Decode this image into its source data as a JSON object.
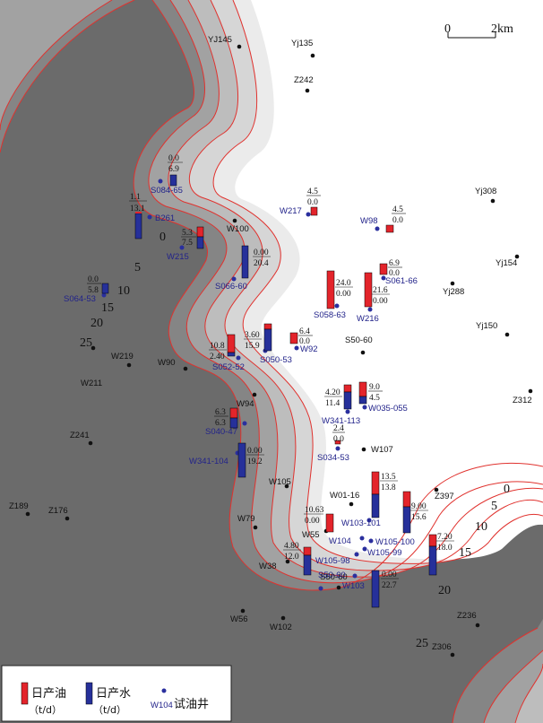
{
  "scale": {
    "zero": "0",
    "label": "2km"
  },
  "colors": {
    "oil": "#e3242b",
    "water": "#26309a",
    "test_well": "#2a2f9e",
    "contour": "#e0322e",
    "well": "#111111"
  },
  "contour_labels": [
    "0",
    "5",
    "10",
    "15",
    "20",
    "25",
    "0",
    "5",
    "10",
    "15",
    "20",
    "25"
  ],
  "wells": [
    "YJ145",
    "Yj135",
    "Z242",
    "Yj308",
    "Yj154",
    "Yj288",
    "Yj150",
    "Z312",
    "S50-60",
    "W100",
    "W94",
    "W107",
    "W105",
    "W01-16",
    "Z397",
    "W55",
    "W79",
    "W38",
    "W56",
    "W102",
    "S50-60",
    "Z236",
    "Z306",
    "W219",
    "W211",
    "W90",
    "Z241",
    "Z189",
    "Z176"
  ],
  "test_wells": [
    "S084-65",
    "B261",
    "W217",
    "W98",
    "W215",
    "S066-60",
    "S061-66",
    "S064-53",
    "S058-63",
    "W216",
    "W92",
    "S052-52",
    "S050-53",
    "W341-113",
    "W035-055",
    "S040-47",
    "S034-53",
    "W341-104",
    "W103-101",
    "W104",
    "W105-100",
    "W105-99",
    "W105-98",
    "W103",
    "S50-60"
  ],
  "production": [
    {
      "oil": "0.0",
      "water": "6.9"
    },
    {
      "oil": "1.1",
      "water": "13.1"
    },
    {
      "oil": "4.5",
      "water": "0.0"
    },
    {
      "oil": "4.5",
      "water": "0.0"
    },
    {
      "oil": "5.3",
      "water": "7.5"
    },
    {
      "oil": "0.00",
      "water": "20.4"
    },
    {
      "oil": "6.9",
      "water": "0.0"
    },
    {
      "oil": "0.0",
      "water": "5.8"
    },
    {
      "oil": "24.0",
      "water": "0.00"
    },
    {
      "oil": "21.6",
      "water": "0.00"
    },
    {
      "oil": "6.4",
      "water": "0.0"
    },
    {
      "oil": "10.8",
      "water": "2.40"
    },
    {
      "oil": "3.60",
      "water": "15.9"
    },
    {
      "oil": "4.20",
      "water": "11.4"
    },
    {
      "oil": "9.0",
      "water": "4.5"
    },
    {
      "oil": "6.3",
      "water": "6.3"
    },
    {
      "oil": "2.4",
      "water": "0.0"
    },
    {
      "oil": "0.00",
      "water": "19.2"
    },
    {
      "oil": "13.5",
      "water": "13.8"
    },
    {
      "oil": "10.63",
      "water": "0.00"
    },
    {
      "oil": "9.00",
      "water": "15.6"
    },
    {
      "oil": "7.20",
      "water": "18.0"
    },
    {
      "oil": "4.80",
      "water": "12.0"
    },
    {
      "oil": "0.00",
      "water": "22.7"
    }
  ],
  "legend": {
    "oil": "日产油",
    "oil_unit": "（t/d）",
    "water": "日产水",
    "water_unit": "（t/d）",
    "well_sample": "W104",
    "test_well": "试油井"
  }
}
